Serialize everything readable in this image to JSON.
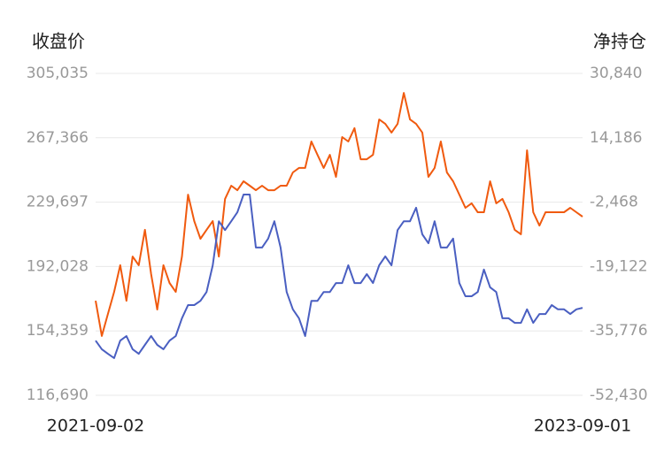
{
  "chart_data": {
    "type": "line",
    "ylabel": "收盘价",
    "y2label": "净持仓",
    "categories": [
      "2021-09-02",
      null,
      null,
      null,
      null,
      null,
      null,
      null,
      null,
      null,
      null,
      null,
      null,
      null,
      null,
      null,
      null,
      null,
      null,
      null,
      null,
      null,
      null,
      null,
      null,
      null,
      null,
      null,
      null,
      null,
      null,
      null,
      null,
      null,
      null,
      null,
      null,
      null,
      null,
      null,
      null,
      null,
      null,
      null,
      null,
      null,
      null,
      null,
      null,
      null,
      null,
      null,
      null,
      null,
      null,
      null,
      null,
      null,
      null,
      null,
      null,
      null,
      null,
      null,
      null,
      null,
      null,
      null,
      null,
      null,
      null,
      null,
      null,
      null,
      null,
      null,
      null,
      null,
      null,
      "2023-09-01"
    ],
    "series": [
      {
        "color": "#f05a0f",
        "axis": "y",
        "values": [
          172000,
          151400,
          164300,
          177200,
          192800,
          172000,
          197900,
          192800,
          213500,
          187600,
          166900,
          192800,
          182400,
          177200,
          197900,
          234100,
          218600,
          208300,
          213500,
          218600,
          197900,
          231600,
          239300,
          236700,
          241900,
          239300,
          236700,
          239300,
          236700,
          236700,
          239300,
          239300,
          247100,
          249700,
          249700,
          265200,
          257400,
          249700,
          257400,
          244500,
          267800,
          265200,
          273000,
          254800,
          254800,
          257400,
          278100,
          275500,
          270400,
          275500,
          293600,
          278100,
          275500,
          270400,
          244500,
          249700,
          265200,
          247100,
          241900,
          234100,
          226400,
          229000,
          223800,
          223800,
          241900,
          229000,
          231600,
          223800,
          213500,
          210900,
          260000,
          223800,
          216000,
          223800,
          223800,
          223800,
          223800,
          226400,
          223800,
          221200
        ]
      },
      {
        "color": "#4a5fc1",
        "axis": "y2",
        "values": [
          -38300,
          -40500,
          -41700,
          -42800,
          -38300,
          -37100,
          -40500,
          -41700,
          -39400,
          -37100,
          -39400,
          -40500,
          -38300,
          -37100,
          -32500,
          -29100,
          -29100,
          -28000,
          -25700,
          -18800,
          -7400,
          -9700,
          -7400,
          -5100,
          -500,
          -500,
          -14200,
          -14200,
          -11900,
          -7400,
          -14200,
          -25700,
          -30200,
          -32500,
          -37100,
          -28000,
          -28000,
          -25700,
          -25700,
          -23400,
          -23400,
          -18800,
          -23400,
          -23400,
          -21100,
          -23400,
          -18800,
          -16500,
          -18800,
          -9700,
          -7400,
          -7400,
          -3900,
          -10800,
          -13100,
          -7400,
          -14200,
          -14200,
          -11900,
          -23400,
          -26800,
          -26800,
          -25700,
          -19900,
          -24500,
          -25700,
          -32500,
          -32500,
          -33700,
          -33700,
          -30200,
          -33700,
          -31400,
          -31400,
          -29100,
          -30200,
          -30200,
          -31400,
          -30200,
          -29800
        ]
      }
    ],
    "ylim": [
      116690,
      305035
    ],
    "yticks": [
      {
        "value": 116690,
        "label": "116,690"
      },
      {
        "value": 154359,
        "label": "154,359"
      },
      {
        "value": 192028,
        "label": "192,028"
      },
      {
        "value": 229697,
        "label": "229,697"
      },
      {
        "value": 267366,
        "label": "267,366"
      },
      {
        "value": 305035,
        "label": "305,035"
      }
    ],
    "y2lim": [
      -52430,
      30840
    ],
    "y2ticks": [
      {
        "value": -52430,
        "label": "-52,430"
      },
      {
        "value": -35776,
        "label": "-35,776"
      },
      {
        "value": -19122,
        "label": "-19,122"
      },
      {
        "value": -2468,
        "label": "-2,468"
      },
      {
        "value": 14186,
        "label": "14,186"
      },
      {
        "value": 30840,
        "label": "30,840"
      }
    ],
    "grid": true
  }
}
